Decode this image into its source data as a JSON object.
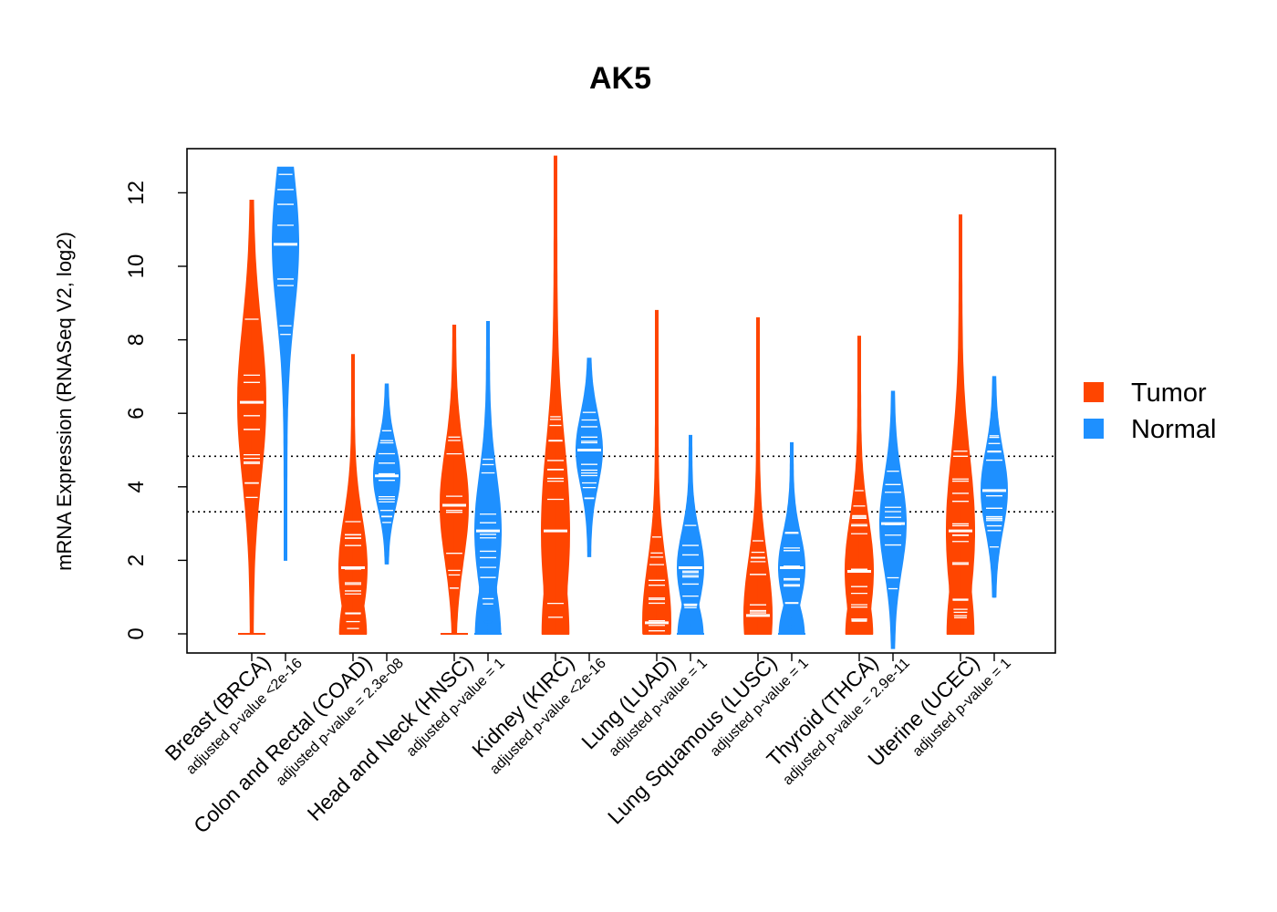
{
  "chart_data": {
    "type": "violin",
    "title": "AK5",
    "ylabel": "mRNA Expression (RNASeq V2, log2)",
    "xlabel": "",
    "ylim": [
      -0.5,
      13.2
    ],
    "yticks": [
      0,
      2,
      4,
      6,
      8,
      10,
      12
    ],
    "reference_lines": [
      4.83,
      3.32
    ],
    "legend": {
      "position": "right",
      "entries": [
        {
          "label": "Tumor",
          "color": "#FF4500"
        },
        {
          "label": "Normal",
          "color": "#1E90FF"
        }
      ]
    },
    "categories": [
      {
        "name": "Breast (BRCA)",
        "pvalue": "adjusted p-value <2e-16",
        "tumor": {
          "median": 6.3,
          "min": 0,
          "max": 11.8
        },
        "normal": {
          "median": 10.6,
          "min": 2.0,
          "max": 12.7
        }
      },
      {
        "name": "Colon and Rectal (COAD)",
        "pvalue": "adjusted p-value = 2.3e-08",
        "tumor": {
          "median": 1.8,
          "min": 0,
          "max": 7.6
        },
        "normal": {
          "median": 4.3,
          "min": 1.9,
          "max": 6.8
        }
      },
      {
        "name": "Head and Neck (HNSC)",
        "pvalue": "adjusted p-value = 1",
        "tumor": {
          "median": 3.5,
          "min": 0,
          "max": 8.4
        },
        "normal": {
          "median": 2.8,
          "min": 0,
          "max": 8.5
        }
      },
      {
        "name": "Kidney (KIRC)",
        "pvalue": "adjusted p-value <2e-16",
        "tumor": {
          "median": 2.8,
          "min": 0,
          "max": 13.0
        },
        "normal": {
          "median": 5.0,
          "min": 2.1,
          "max": 7.5
        }
      },
      {
        "name": "Lung (LUAD)",
        "pvalue": "adjusted p-value = 1",
        "tumor": {
          "median": 0.3,
          "min": 0,
          "max": 8.8
        },
        "normal": {
          "median": 1.8,
          "min": 0,
          "max": 5.4
        }
      },
      {
        "name": "Lung Squamous (LUSC)",
        "pvalue": "adjusted p-value = 1",
        "tumor": {
          "median": 0.5,
          "min": 0,
          "max": 8.6
        },
        "normal": {
          "median": 1.8,
          "min": 0,
          "max": 5.2
        }
      },
      {
        "name": "Thyroid (THCA)",
        "pvalue": "adjusted p-value = 2.9e-11",
        "tumor": {
          "median": 1.7,
          "min": 0,
          "max": 8.1
        },
        "normal": {
          "median": 3.0,
          "min": -0.4,
          "max": 6.6
        }
      },
      {
        "name": "Uterine (UCEC)",
        "pvalue": "adjusted p-value = 1",
        "tumor": {
          "median": 2.8,
          "min": 0,
          "max": 11.4
        },
        "normal": {
          "median": 3.9,
          "min": 1.0,
          "max": 7.0
        }
      }
    ]
  }
}
